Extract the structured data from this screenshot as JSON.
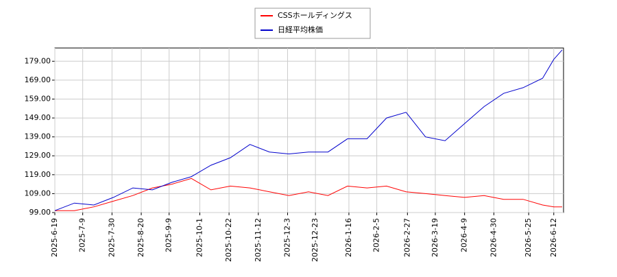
{
  "chart_data": {
    "type": "line",
    "x": [
      "2025-6-19",
      "2025-7-3",
      "2025-7-17",
      "2025-7-31",
      "2025-8-14",
      "2025-8-28",
      "2025-9-11",
      "2025-9-25",
      "2025-10-9",
      "2025-10-23",
      "2025-11-6",
      "2025-11-20",
      "2025-12-4",
      "2025-12-18",
      "2026-1-1",
      "2026-1-15",
      "2026-1-29",
      "2026-2-12",
      "2026-2-26",
      "2026-3-12",
      "2026-3-26",
      "2026-4-9",
      "2026-4-23",
      "2026-5-7",
      "2026-5-21",
      "2026-6-4",
      "2026-6-12",
      "2026-6-18"
    ],
    "series": [
      {
        "name": "CSSホールディングス",
        "color": "#ff0000",
        "values": [
          100,
          100,
          102,
          105,
          108,
          112,
          114,
          117,
          111,
          113,
          112,
          110,
          108,
          110,
          108,
          113,
          112,
          113,
          110,
          109,
          108,
          107,
          108,
          106,
          106,
          103,
          102,
          102
        ]
      },
      {
        "name": "日経平均株価",
        "color": "#0000cc",
        "values": [
          100,
          104,
          103,
          107,
          112,
          111,
          115,
          118,
          124,
          128,
          135,
          131,
          130,
          131,
          131,
          138,
          138,
          149,
          152,
          139,
          137,
          146,
          155,
          162,
          165,
          170,
          180,
          185
        ]
      }
    ],
    "xlim": [
      "2025-6-19",
      "2026-6-19"
    ],
    "xticks": [
      "2025-6-19",
      "2025-7-9",
      "2025-7-30",
      "2025-8-20",
      "2025-9-9",
      "2025-10-1",
      "2025-10-22",
      "2025-11-12",
      "2025-12-3",
      "2025-12-23",
      "2026-1-16",
      "2026-2-5",
      "2026-2-27",
      "2026-3-19",
      "2026-4-9",
      "2026-4-30",
      "2026-5-25",
      "2026-6-12"
    ],
    "ylim": [
      99,
      186
    ],
    "yticks": [
      {
        "value": 99,
        "label": "99.00"
      },
      {
        "value": 109,
        "label": "109.00"
      },
      {
        "value": 119,
        "label": "119.00"
      },
      {
        "value": 129,
        "label": "129.00"
      },
      {
        "value": 139,
        "label": "139.00"
      },
      {
        "value": 149,
        "label": "149.00"
      },
      {
        "value": 159,
        "label": "159.00"
      },
      {
        "value": 169,
        "label": "169.00"
      },
      {
        "value": 179,
        "label": "179.00"
      }
    ],
    "grid": true
  }
}
